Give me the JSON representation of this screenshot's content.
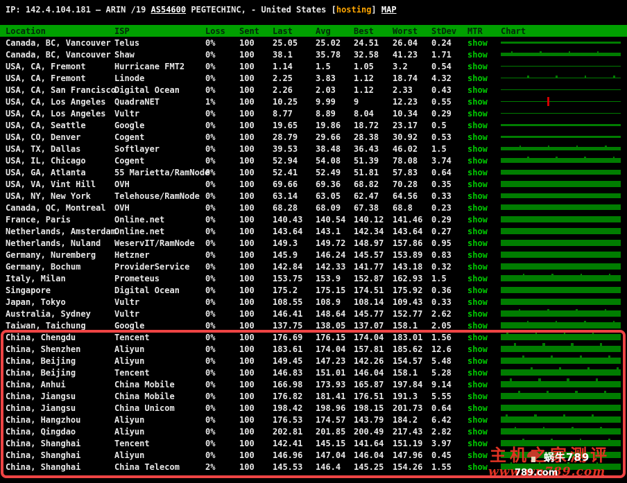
{
  "title": {
    "prefix": "IP: 142.4.104.181 – ARIN /19 ",
    "asn_link": "AS54600",
    "mid": " PEGTECHINC, - United States ",
    "bracket_open": "[",
    "hosting_tag": "hosting",
    "bracket_close": "] ",
    "map_link": "MAP"
  },
  "columns": [
    "Location",
    "ISP",
    "Loss",
    "Sent",
    "Last",
    "Avg",
    "Best",
    "Worst",
    "StDev",
    "MTR",
    "Chart"
  ],
  "mtr_label": "show",
  "rows": [
    {
      "location": "Canada, BC, Vancouver",
      "isp": "Telus",
      "loss": "0%",
      "sent": "100",
      "last": "25.05",
      "avg": 25.02,
      "best": "24.51",
      "worst": "26.04",
      "stdev": 0.24
    },
    {
      "location": "Canada, BC, Vancouver",
      "isp": "Shaw",
      "loss": "0%",
      "sent": "100",
      "last": "38.1",
      "avg": 35.78,
      "best": "32.58",
      "worst": "41.23",
      "stdev": 1.71
    },
    {
      "location": "USA, CA, Fremont",
      "isp": "Hurricane FMT2",
      "loss": "0%",
      "sent": "100",
      "last": "1.14",
      "avg": 1.5,
      "best": "1.05",
      "worst": "3.2",
      "stdev": 0.54
    },
    {
      "location": "USA, CA, Fremont",
      "isp": "Linode",
      "loss": "0%",
      "sent": "100",
      "last": "2.25",
      "avg": 3.83,
      "best": "1.12",
      "worst": "18.74",
      "stdev": 4.32
    },
    {
      "location": "USA, CA, San Francisco",
      "isp": "Digital Ocean",
      "loss": "0%",
      "sent": "100",
      "last": "2.26",
      "avg": 2.03,
      "best": "1.12",
      "worst": "2.33",
      "stdev": 0.43
    },
    {
      "location": "USA, CA, Los Angeles",
      "isp": "QuadraNET",
      "loss": "1%",
      "sent": "100",
      "last": "10.25",
      "avg": 9.99,
      "best": "9",
      "worst": "12.23",
      "stdev": 0.55,
      "loss_event": true
    },
    {
      "location": "USA, CA, Los Angeles",
      "isp": "Vultr",
      "loss": "0%",
      "sent": "100",
      "last": "8.77",
      "avg": 8.89,
      "best": "8.04",
      "worst": "10.34",
      "stdev": 0.29
    },
    {
      "location": "USA, CA, Seattle",
      "isp": "Google",
      "loss": "0%",
      "sent": "100",
      "last": "19.65",
      "avg": 19.86,
      "best": "18.72",
      "worst": "23.17",
      "stdev": 0.5
    },
    {
      "location": "USA, CO, Denver",
      "isp": "Cogent",
      "loss": "0%",
      "sent": "100",
      "last": "28.79",
      "avg": 29.66,
      "best": "28.38",
      "worst": "30.92",
      "stdev": 0.53
    },
    {
      "location": "USA, TX, Dallas",
      "isp": "Softlayer",
      "loss": "0%",
      "sent": "100",
      "last": "39.53",
      "avg": 38.48,
      "best": "36.43",
      "worst": "46.02",
      "stdev": 1.5
    },
    {
      "location": "USA, IL, Chicago",
      "isp": "Cogent",
      "loss": "0%",
      "sent": "100",
      "last": "52.94",
      "avg": 54.08,
      "best": "51.39",
      "worst": "78.08",
      "stdev": 3.74
    },
    {
      "location": "USA, GA, Atlanta",
      "isp": "55 Marietta/RamNode",
      "loss": "0%",
      "sent": "100",
      "last": "52.41",
      "avg": 52.49,
      "best": "51.81",
      "worst": "57.83",
      "stdev": 0.64
    },
    {
      "location": "USA, VA, Vint Hill",
      "isp": "OVH",
      "loss": "0%",
      "sent": "100",
      "last": "69.66",
      "avg": 69.36,
      "best": "68.82",
      "worst": "70.28",
      "stdev": 0.35
    },
    {
      "location": "USA, NY, New York",
      "isp": "Telehouse/RamNode",
      "loss": "0%",
      "sent": "100",
      "last": "63.14",
      "avg": 63.05,
      "best": "62.47",
      "worst": "64.56",
      "stdev": 0.33
    },
    {
      "location": "Canada, QC, Montreal",
      "isp": "OVH",
      "loss": "0%",
      "sent": "100",
      "last": "68.28",
      "avg": 68.09,
      "best": "67.38",
      "worst": "68.8",
      "stdev": 0.23
    },
    {
      "location": "France, Paris",
      "isp": "Online.net",
      "loss": "0%",
      "sent": "100",
      "last": "140.43",
      "avg": 140.54,
      "best": "140.12",
      "worst": "141.46",
      "stdev": 0.29
    },
    {
      "location": "Netherlands, Amsterdam",
      "isp": "Online.net",
      "loss": "0%",
      "sent": "100",
      "last": "143.64",
      "avg": 143.1,
      "best": "142.34",
      "worst": "143.64",
      "stdev": 0.27
    },
    {
      "location": "Netherlands, Nuland",
      "isp": "WeservIT/RamNode",
      "loss": "0%",
      "sent": "100",
      "last": "149.3",
      "avg": 149.72,
      "best": "148.97",
      "worst": "157.86",
      "stdev": 0.95
    },
    {
      "location": "Germany, Nuremberg",
      "isp": "Hetzner",
      "loss": "0%",
      "sent": "100",
      "last": "145.9",
      "avg": 146.24,
      "best": "145.57",
      "worst": "153.89",
      "stdev": 0.83
    },
    {
      "location": "Germany, Bochum",
      "isp": "ProviderService",
      "loss": "0%",
      "sent": "100",
      "last": "142.84",
      "avg": 142.33,
      "best": "141.77",
      "worst": "143.18",
      "stdev": 0.32
    },
    {
      "location": "Italy, Milan",
      "isp": "Prometeus",
      "loss": "0%",
      "sent": "100",
      "last": "153.75",
      "avg": 153.9,
      "best": "152.87",
      "worst": "162.93",
      "stdev": 1.5
    },
    {
      "location": "Singapore",
      "isp": "Digital Ocean",
      "loss": "0%",
      "sent": "100",
      "last": "175.2",
      "avg": 175.15,
      "best": "174.51",
      "worst": "175.92",
      "stdev": 0.36
    },
    {
      "location": "Japan, Tokyo",
      "isp": "Vultr",
      "loss": "0%",
      "sent": "100",
      "last": "108.55",
      "avg": 108.9,
      "best": "108.14",
      "worst": "109.43",
      "stdev": 0.33
    },
    {
      "location": "Australia, Sydney",
      "isp": "Vultr",
      "loss": "0%",
      "sent": "100",
      "last": "146.41",
      "avg": 148.64,
      "best": "145.77",
      "worst": "152.77",
      "stdev": 2.62
    },
    {
      "location": "Taiwan, Taichung",
      "isp": "Google",
      "loss": "0%",
      "sent": "100",
      "last": "137.75",
      "avg": 138.05,
      "best": "137.07",
      "worst": "158.1",
      "stdev": 2.05
    },
    {
      "location": "China, Chengdu",
      "isp": "Tencent",
      "loss": "0%",
      "sent": "100",
      "last": "176.69",
      "avg": 176.15,
      "best": "174.04",
      "worst": "183.01",
      "stdev": 1.56
    },
    {
      "location": "China, Shenzhen",
      "isp": "Aliyun",
      "loss": "0%",
      "sent": "100",
      "last": "183.61",
      "avg": 174.04,
      "best": "157.81",
      "worst": "185.62",
      "stdev": 12.6
    },
    {
      "location": "China, Beijing",
      "isp": "Aliyun",
      "loss": "0%",
      "sent": "100",
      "last": "149.45",
      "avg": 147.23,
      "best": "142.26",
      "worst": "154.57",
      "stdev": 5.48
    },
    {
      "location": "China, Beijing",
      "isp": "Tencent",
      "loss": "0%",
      "sent": "100",
      "last": "146.83",
      "avg": 151.01,
      "best": "146.04",
      "worst": "158.1",
      "stdev": 5.28
    },
    {
      "location": "China, Anhui",
      "isp": "China Mobile",
      "loss": "0%",
      "sent": "100",
      "last": "166.98",
      "avg": 173.93,
      "best": "165.87",
      "worst": "197.84",
      "stdev": 9.14
    },
    {
      "location": "China, Jiangsu",
      "isp": "China Mobile",
      "loss": "0%",
      "sent": "100",
      "last": "176.82",
      "avg": 181.41,
      "best": "176.51",
      "worst": "191.3",
      "stdev": 5.55
    },
    {
      "location": "China, Jiangsu",
      "isp": "China Unicom",
      "loss": "0%",
      "sent": "100",
      "last": "198.42",
      "avg": 198.96,
      "best": "198.15",
      "worst": "201.73",
      "stdev": 0.64
    },
    {
      "location": "China, Hangzhou",
      "isp": "Aliyun",
      "loss": "0%",
      "sent": "100",
      "last": "176.53",
      "avg": 174.57,
      "best": "143.79",
      "worst": "184.2",
      "stdev": 6.42
    },
    {
      "location": "China, Qingdao",
      "isp": "Aliyun",
      "loss": "0%",
      "sent": "100",
      "last": "202.81",
      "avg": 201.85,
      "best": "200.49",
      "worst": "217.43",
      "stdev": 2.82
    },
    {
      "location": "China, Shanghai",
      "isp": "Tencent",
      "loss": "0%",
      "sent": "100",
      "last": "142.41",
      "avg": 145.15,
      "best": "141.64",
      "worst": "151.19",
      "stdev": 3.97
    },
    {
      "location": "China, Shanghai",
      "isp": "Aliyun",
      "loss": "0%",
      "sent": "100",
      "last": "146.96",
      "avg": 147.04,
      "best": "146.04",
      "worst": "147.96",
      "stdev": 0.45
    },
    {
      "location": "China, Shanghai",
      "isp": "China Telecom",
      "loss": "2%",
      "sent": "100",
      "last": "145.53",
      "avg": 146.4,
      "best": "145.25",
      "worst": "154.26",
      "stdev": 1.55
    }
  ],
  "watermark": {
    "cn_text": "主机之家测评",
    "white_text": "蜗牛789",
    "url_text": "www.wn789.com",
    "url_white": "789.com"
  },
  "colors": {
    "header_green": "#00a000",
    "show_green": "#00cc00",
    "bar_green": "#007d00",
    "loss_red": "#d40000",
    "box_red": "#ee4444",
    "hosting_orange": "#ffa600",
    "watermark_red": "#e03222"
  }
}
